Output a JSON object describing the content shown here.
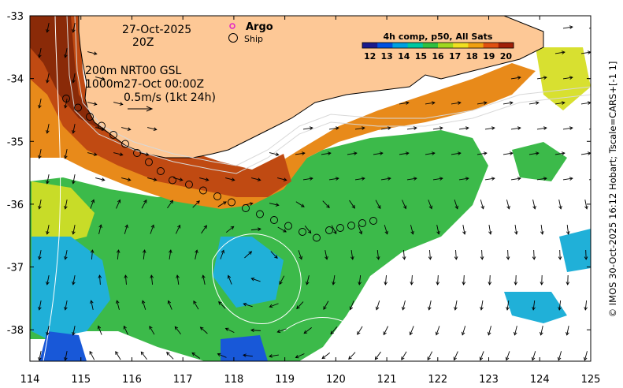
{
  "title": {
    "date": "27-Oct-2025",
    "time": "20Z"
  },
  "legend": {
    "argo_label": "Argo",
    "ship_label": "Ship",
    "argo_color": "#e020c8"
  },
  "info": {
    "line1": "200m  NRT00 GSL",
    "line2": "1000m27-Oct 00:00Z",
    "scale_label": "0.5m/s (1kt 24h)"
  },
  "colorbar": {
    "title": "4h comp, p50, All Sats",
    "ticks": [
      "12",
      "13",
      "14",
      "15",
      "16",
      "17",
      "18",
      "19",
      "20"
    ],
    "colors": [
      "#1a1a8c",
      "#0050e0",
      "#00a0e0",
      "#00c8a0",
      "#30c040",
      "#a0d820",
      "#f0e020",
      "#f0a010",
      "#e05010",
      "#a02008"
    ]
  },
  "axes": {
    "x_ticks": [
      "114",
      "115",
      "116",
      "117",
      "118",
      "119",
      "120",
      "121",
      "122",
      "123",
      "124",
      "125"
    ],
    "y_ticks": [
      "-33",
      "-34",
      "-35",
      "-36",
      "-37",
      "-38"
    ],
    "x_range": [
      114,
      125
    ],
    "y_range": [
      -38.5,
      -33
    ]
  },
  "credit": "© IMOS 30-Oct-2025 16:12 Hobart; Tscale=CARS+[-1 1]",
  "colors": {
    "land": "#fdc896",
    "no_data": "#ffffff",
    "green": "#30b848",
    "orange": "#e88a1a",
    "red_brown": "#a83a10"
  }
}
